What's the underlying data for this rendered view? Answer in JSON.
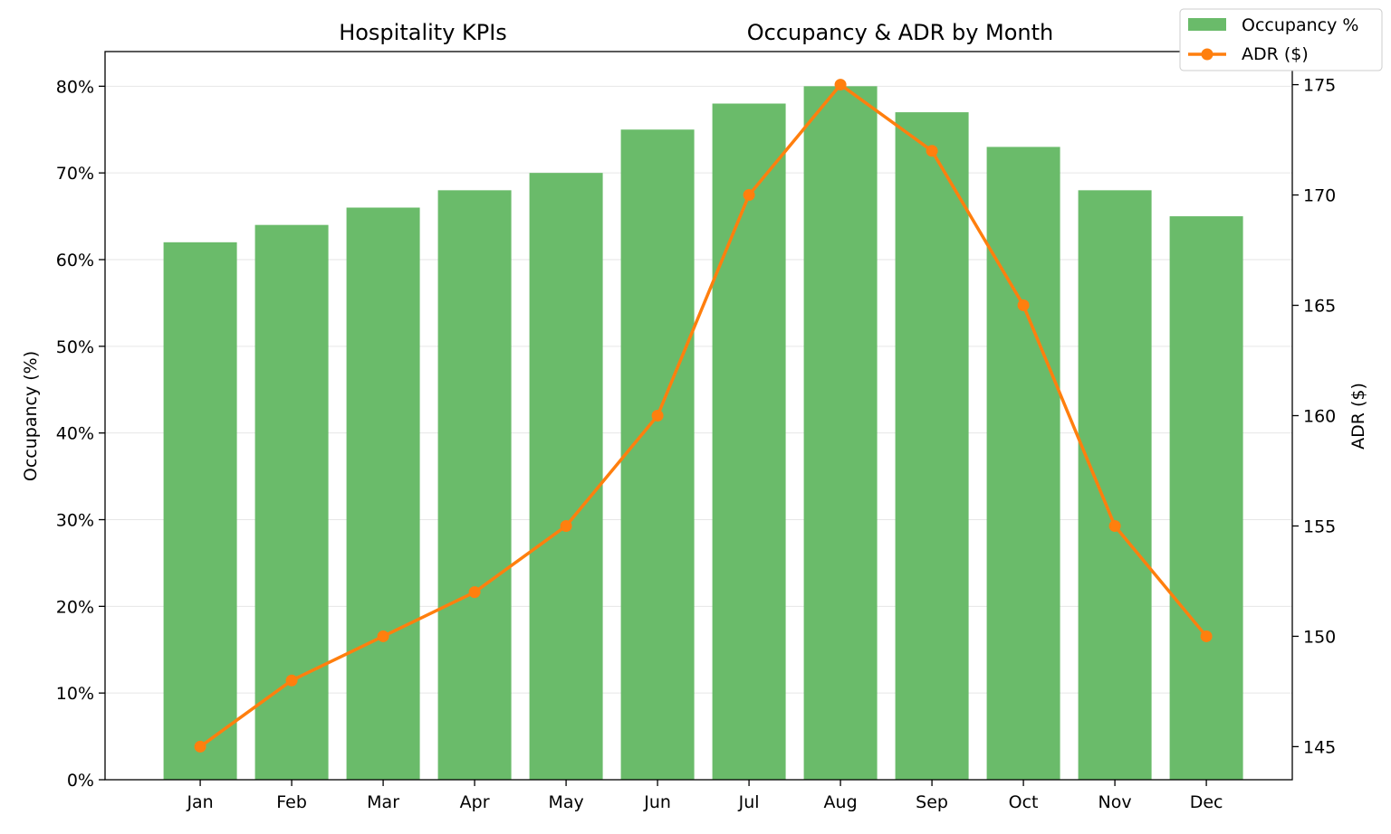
{
  "chart_data": {
    "type": "bar",
    "titles": {
      "left": "Hospitality KPIs",
      "right": "Occupancy & ADR by Month"
    },
    "categories": [
      "Jan",
      "Feb",
      "Mar",
      "Apr",
      "May",
      "Jun",
      "Jul",
      "Aug",
      "Sep",
      "Oct",
      "Nov",
      "Dec"
    ],
    "series": [
      {
        "name": "Occupancy %",
        "type": "bar",
        "axis": "left",
        "color": "#6abb6a",
        "values": [
          62,
          64,
          66,
          68,
          70,
          75,
          78,
          80,
          77,
          73,
          68,
          65
        ]
      },
      {
        "name": "ADR ($)",
        "type": "line",
        "axis": "right",
        "color": "#ff7f0e",
        "marker": "circle",
        "values": [
          145,
          148,
          150,
          152,
          155,
          160,
          170,
          175,
          172,
          165,
          155,
          150
        ]
      }
    ],
    "y_left": {
      "label": "Occupancy (%)",
      "ylim": [
        0,
        84
      ],
      "ticks": [
        0,
        10,
        20,
        30,
        40,
        50,
        60,
        70,
        80
      ],
      "tick_labels": [
        "0%",
        "10%",
        "20%",
        "30%",
        "40%",
        "50%",
        "60%",
        "70%",
        "80%"
      ]
    },
    "y_right": {
      "label": "ADR ($)",
      "ylim": [
        143.5,
        176.5
      ],
      "ticks": [
        145,
        150,
        155,
        160,
        165,
        170,
        175
      ],
      "tick_labels": [
        "145",
        "150",
        "155",
        "160",
        "165",
        "170",
        "175"
      ]
    },
    "grid": "horizontal",
    "legend": "top-right"
  }
}
